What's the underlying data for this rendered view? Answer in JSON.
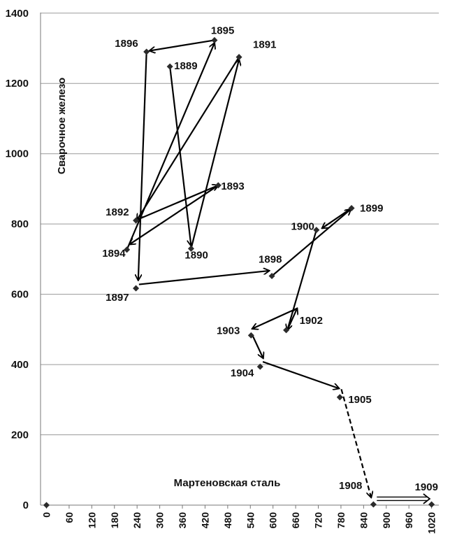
{
  "chart_data": {
    "type": "scatter",
    "xlabel": "Мартеновская сталь",
    "ylabel": "Сварочное железо",
    "xlim": [
      0,
      1050
    ],
    "ylim": [
      0,
      1400
    ],
    "yticks": [
      "0",
      "200",
      "400",
      "600",
      "800",
      "1000",
      "1200",
      "1400"
    ],
    "xticks": [
      "0",
      "60",
      "120",
      "180",
      "240",
      "300",
      "360",
      "420",
      "480",
      "540",
      "600",
      "660",
      "720",
      "780",
      "840",
      "900",
      "960",
      "1020"
    ],
    "grid": "horizontal",
    "colors": {
      "points": "#2b2b2b",
      "arrows": "#000000",
      "grid": "#9a9a9a"
    },
    "points": [
      {
        "label": "",
        "x": 0,
        "y": 0
      },
      {
        "label": "1889",
        "x": 327,
        "y": 1248
      },
      {
        "label": "1890",
        "x": 383,
        "y": 730
      },
      {
        "label": "1891",
        "x": 510,
        "y": 1275
      },
      {
        "label": "1892",
        "x": 237,
        "y": 810
      },
      {
        "label": "1893",
        "x": 455,
        "y": 910
      },
      {
        "label": "1894",
        "x": 213,
        "y": 727
      },
      {
        "label": "1895",
        "x": 445,
        "y": 1323
      },
      {
        "label": "1896",
        "x": 265,
        "y": 1290
      },
      {
        "label": "1897",
        "x": 237,
        "y": 617
      },
      {
        "label": "1898",
        "x": 597,
        "y": 652
      },
      {
        "label": "1899",
        "x": 808,
        "y": 845
      },
      {
        "label": "1900",
        "x": 715,
        "y": 783
      },
      {
        "label": "1902",
        "x": 635,
        "y": 498
      },
      {
        "label": "1903",
        "x": 542,
        "y": 483
      },
      {
        "label": "1904",
        "x": 566,
        "y": 394
      },
      {
        "label": "1905",
        "x": 777,
        "y": 307
      },
      {
        "label": "1908",
        "x": 866,
        "y": 2
      },
      {
        "label": "1909",
        "x": 1020,
        "y": 2
      }
    ],
    "arrows": [
      {
        "from": [
          327,
          1248
        ],
        "to": [
          383,
          738
        ],
        "style": "solid"
      },
      {
        "from": [
          383,
          730
        ],
        "to": [
          510,
          1268
        ],
        "style": "solid"
      },
      {
        "from": [
          510,
          1275
        ],
        "to": [
          240,
          812
        ],
        "style": "solid"
      },
      {
        "from": [
          240,
          812
        ],
        "to": [
          455,
          910
        ],
        "style": "solid"
      },
      {
        "from": [
          455,
          910
        ],
        "to": [
          220,
          742
        ],
        "style": "solid"
      },
      {
        "from": [
          213,
          727
        ],
        "to": [
          445,
          1315
        ],
        "style": "solid"
      },
      {
        "from": [
          445,
          1323
        ],
        "to": [
          273,
          1293
        ],
        "style": "solid"
      },
      {
        "from": [
          265,
          1290
        ],
        "to": [
          243,
          640
        ],
        "style": "solid"
      },
      {
        "from": [
          245,
          628
        ],
        "to": [
          590,
          667
        ],
        "style": "solid"
      },
      {
        "from": [
          597,
          652
        ],
        "to": [
          806,
          842
        ],
        "style": "solid"
      },
      {
        "from": [
          808,
          845
        ],
        "to": [
          730,
          788
        ],
        "style": "solid"
      },
      {
        "from": [
          715,
          783
        ],
        "to": [
          638,
          498
        ],
        "style": "solid"
      },
      {
        "from": [
          638,
          498
        ],
        "to": [
          664,
          560
        ],
        "style": "solid"
      },
      {
        "from": [
          664,
          560
        ],
        "to": [
          545,
          502
        ],
        "style": "solid"
      },
      {
        "from": [
          547,
          480
        ],
        "to": [
          574,
          418
        ],
        "style": "solid"
      },
      {
        "from": [
          573,
          408
        ],
        "to": [
          775,
          332
        ],
        "style": "solid"
      },
      {
        "from": [
          781,
          330
        ],
        "to": [
          860,
          22
        ],
        "style": "dashed"
      },
      {
        "from": [
          875,
          18
        ],
        "to": [
          1015,
          18
        ],
        "style": "double"
      }
    ]
  }
}
